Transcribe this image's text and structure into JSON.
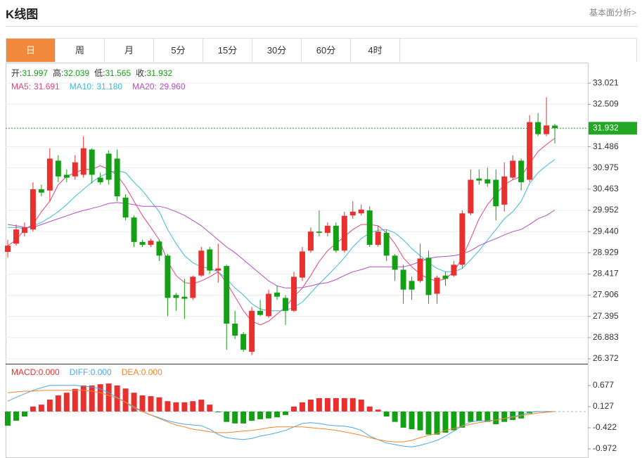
{
  "header": {
    "title": "K线图",
    "link": "基本面分析>"
  },
  "tabs": [
    "日",
    "周",
    "月",
    "5分",
    "15分",
    "30分",
    "60分",
    "4时"
  ],
  "chart_data": [
    {
      "type": "candlestick",
      "up_color": "#e8312f",
      "down_color": "#14a014",
      "price_line_color": "#22a822",
      "grid": true,
      "ylim": [
        26.253,
        33.498
      ],
      "yticks": [
        33.021,
        32.509,
        31.486,
        30.975,
        30.463,
        29.952,
        {
          "value": 29.44,
          "label": "29.440"
        },
        28.929,
        28.417,
        27.906,
        27.395,
        26.883,
        26.372
      ],
      "readout": [
        {
          "name": "开:",
          "value": "31.997"
        },
        {
          "name": "高:",
          "value": "32.039"
        },
        {
          "name": "低:",
          "value": "31.565"
        },
        {
          "name": "收:",
          "value": "31.932"
        }
      ],
      "open": [
        28.95,
        29.15,
        29.41,
        29.49,
        30.46,
        30.43,
        31.15,
        30.81,
        30.77,
        30.81,
        31.42,
        30.74,
        31.32,
        31.2,
        30.26,
        29.78,
        29.19,
        29.12,
        29.2,
        28.86,
        27.91,
        27.87,
        27.84,
        28.38,
        29.01,
        28.5,
        28.61,
        27.22,
        26.97,
        26.54,
        27.53,
        27.4,
        27.97,
        27.84,
        27.53,
        28.33,
        28.98,
        29.44,
        29.41,
        29.58,
        28.98,
        29.83,
        29.88,
        29.95,
        29.12,
        29.41,
        28.86,
        28.52,
        28.25,
        28.25,
        28.81,
        27.94,
        28.38,
        28.38,
        28.64,
        29.88,
        30.72,
        30.7,
        30.69,
        30.09,
        30.74,
        31.15,
        30.69,
        32.08,
        31.79,
        31.997
      ],
      "high": [
        29.24,
        29.61,
        29.66,
        30.63,
        30.57,
        31.45,
        31.28,
        30.94,
        31.28,
        31.74,
        31.45,
        30.86,
        31.4,
        31.42,
        30.34,
        29.83,
        29.24,
        29.27,
        29.24,
        28.9,
        27.96,
        28.3,
        28.38,
        29.07,
        29.07,
        29.15,
        28.64,
        27.53,
        27.02,
        27.62,
        27.79,
        28.04,
        28.13,
        27.91,
        28.47,
        29.07,
        29.54,
        29.95,
        29.66,
        29.66,
        29.92,
        30.17,
        30.09,
        30.05,
        29.58,
        29.49,
        28.9,
        28.64,
        28.35,
        29.15,
        28.98,
        28.38,
        28.47,
        28.73,
        29.95,
        30.94,
        30.94,
        30.98,
        30.94,
        31.11,
        31.28,
        31.2,
        32.25,
        32.3,
        32.68,
        32.039
      ],
      "low": [
        28.81,
        29.1,
        29.32,
        29.44,
        30.29,
        30.17,
        30.63,
        30.63,
        30.69,
        30.74,
        30.6,
        30.57,
        30.57,
        30.17,
        29.71,
        29.07,
        29.07,
        29.07,
        28.73,
        27.4,
        27.53,
        27.33,
        27.79,
        28.35,
        28.42,
        28.21,
        26.59,
        26.85,
        26.54,
        26.46,
        27.4,
        27.36,
        27.79,
        27.19,
        27.5,
        28.25,
        28.93,
        29.32,
        29.32,
        28.93,
        28.93,
        29.75,
        29.83,
        29.07,
        29.07,
        28.73,
        28.25,
        27.7,
        27.79,
        28.21,
        27.7,
        27.7,
        28.13,
        28.35,
        28.55,
        29.83,
        30.57,
        30.52,
        29.71,
        29.92,
        30.69,
        30.43,
        30.63,
        31.74,
        31.74,
        31.565
      ],
      "close": [
        29.1,
        29.49,
        29.54,
        30.46,
        30.38,
        31.2,
        30.77,
        30.74,
        31.11,
        31.45,
        30.81,
        30.63,
        30.69,
        30.29,
        29.78,
        29.19,
        29.12,
        29.22,
        28.86,
        27.84,
        27.84,
        27.82,
        28.35,
        28.98,
        28.5,
        28.55,
        27.22,
        26.93,
        26.59,
        27.53,
        27.43,
        27.94,
        27.87,
        27.53,
        28.35,
        28.96,
        29.44,
        29.41,
        29.58,
        28.98,
        29.82,
        29.92,
        29.97,
        29.12,
        29.44,
        28.86,
        28.52,
        28.04,
        28.04,
        28.79,
        27.91,
        28.33,
        28.3,
        28.64,
        29.88,
        30.69,
        30.67,
        30.6,
        30.05,
        30.77,
        31.15,
        30.63,
        32.08,
        31.79,
        32.0,
        31.932
      ],
      "series": [
        {
          "name": "MA5:",
          "readout": "31.691",
          "color": "#e0457b",
          "values": [
            29.1,
            29.24,
            29.49,
            29.61,
            29.92,
            30.17,
            30.57,
            30.77,
            30.86,
            30.94,
            30.94,
            31.03,
            30.94,
            30.8,
            30.52,
            30.17,
            29.83,
            29.54,
            29.24,
            28.72,
            28.38,
            28.21,
            28.18,
            28.25,
            28.35,
            28.47,
            28.21,
            27.87,
            27.53,
            27.28,
            27.19,
            27.28,
            27.45,
            27.62,
            27.87,
            28.08,
            28.38,
            28.72,
            28.98,
            29.15,
            29.32,
            29.49,
            29.61,
            29.61,
            29.58,
            29.41,
            29.15,
            28.81,
            28.59,
            28.42,
            28.3,
            28.25,
            28.3,
            28.47,
            28.81,
            29.27,
            29.75,
            30.09,
            30.34,
            30.57,
            30.69,
            30.77,
            31.08,
            31.37,
            31.54,
            31.691
          ]
        },
        {
          "name": "MA10:",
          "readout": "31.180",
          "color": "#39bcd6",
          "values": [
            29.54,
            29.54,
            29.51,
            29.58,
            29.66,
            29.78,
            29.92,
            30.09,
            30.29,
            30.46,
            30.63,
            30.77,
            30.86,
            30.91,
            30.86,
            30.63,
            30.43,
            30.17,
            29.92,
            29.49,
            29.15,
            28.86,
            28.69,
            28.59,
            28.55,
            28.47,
            28.3,
            28.08,
            27.91,
            27.7,
            27.57,
            27.53,
            27.53,
            27.53,
            27.62,
            27.74,
            27.96,
            28.18,
            28.38,
            28.59,
            28.81,
            29.07,
            29.27,
            29.41,
            29.47,
            29.49,
            29.41,
            29.24,
            29.03,
            28.86,
            28.69,
            28.55,
            28.47,
            28.47,
            28.55,
            28.76,
            28.98,
            29.24,
            29.49,
            29.75,
            29.92,
            30.17,
            30.6,
            30.86,
            31.03,
            31.18
          ]
        },
        {
          "name": "MA20:",
          "readout": "29.960",
          "color": "#b24cc2",
          "values": [
            29.61,
            29.58,
            29.54,
            29.54,
            29.61,
            29.68,
            29.75,
            29.82,
            29.89,
            29.95,
            30.0,
            30.05,
            30.12,
            30.14,
            30.12,
            30.09,
            30.05,
            30.05,
            30.05,
            30.0,
            29.92,
            29.83,
            29.71,
            29.58,
            29.41,
            29.24,
            29.07,
            28.93,
            28.76,
            28.59,
            28.42,
            28.25,
            28.13,
            28.08,
            28.08,
            28.09,
            28.13,
            28.18,
            28.21,
            28.28,
            28.38,
            28.47,
            28.52,
            28.59,
            28.59,
            28.59,
            28.59,
            28.59,
            28.64,
            28.72,
            28.79,
            28.83,
            28.84,
            28.86,
            28.9,
            28.98,
            29.1,
            29.19,
            29.27,
            29.36,
            29.44,
            29.49,
            29.61,
            29.75,
            29.83,
            29.96
          ]
        }
      ]
    },
    {
      "type": "macd",
      "up_color": "#e8312f",
      "down_color": "#14a014",
      "ylim": [
        -1.21,
        1.2265
      ],
      "yticks": [
        0.677,
        0.127,
        -0.422,
        -0.972
      ],
      "series": [
        {
          "name": "MACD:",
          "readout": "0.000",
          "kind": "bar",
          "color": "#e8312f",
          "values": [
            -0.37,
            -0.24,
            -0.13,
            0.13,
            0.18,
            0.31,
            0.42,
            0.49,
            0.59,
            0.68,
            0.68,
            0.71,
            0.73,
            0.68,
            0.6,
            0.49,
            0.42,
            0.4,
            0.37,
            0.27,
            0.24,
            0.24,
            0.27,
            0.31,
            0.18,
            -0.02,
            -0.27,
            -0.31,
            -0.31,
            -0.24,
            -0.2,
            -0.18,
            -0.15,
            -0.09,
            0.13,
            0.24,
            0.31,
            0.35,
            0.35,
            0.35,
            0.35,
            0.35,
            0.31,
            0.13,
            0.05,
            -0.13,
            -0.27,
            -0.42,
            -0.46,
            -0.49,
            -0.6,
            -0.6,
            -0.55,
            -0.49,
            -0.42,
            -0.27,
            -0.24,
            -0.27,
            -0.33,
            -0.27,
            -0.22,
            -0.18,
            -0.05,
            0.01,
            0.01,
            0
          ]
        },
        {
          "name": "DIFF:",
          "readout": "0.000",
          "kind": "line",
          "color": "#4ea6e6",
          "values": [
            0.27,
            0.37,
            0.46,
            0.55,
            0.62,
            0.68,
            0.68,
            0.68,
            0.68,
            0.66,
            0.64,
            0.59,
            0.49,
            0.37,
            0.24,
            0.09,
            0,
            -0.09,
            -0.16,
            -0.24,
            -0.29,
            -0.33,
            -0.35,
            -0.37,
            -0.46,
            -0.6,
            -0.68,
            -0.71,
            -0.73,
            -0.7,
            -0.64,
            -0.6,
            -0.55,
            -0.49,
            -0.4,
            -0.31,
            -0.29,
            -0.31,
            -0.35,
            -0.37,
            -0.38,
            -0.42,
            -0.49,
            -0.64,
            -0.73,
            -0.82,
            -0.86,
            -0.9,
            -0.92,
            -0.88,
            -0.82,
            -0.75,
            -0.64,
            -0.51,
            -0.37,
            -0.27,
            -0.24,
            -0.24,
            -0.22,
            -0.18,
            -0.13,
            -0.09,
            -0.02,
            0,
            0,
            0
          ]
        },
        {
          "name": "DEA:",
          "readout": "0.000",
          "kind": "line",
          "color": "#f0862a",
          "values": [
            0.49,
            0.51,
            0.53,
            0.53,
            0.55,
            0.55,
            0.55,
            0.55,
            0.55,
            0.55,
            0.53,
            0.49,
            0.42,
            0.35,
            0.24,
            0.13,
            0,
            -0.09,
            -0.18,
            -0.27,
            -0.35,
            -0.4,
            -0.46,
            -0.49,
            -0.53,
            -0.55,
            -0.55,
            -0.53,
            -0.51,
            -0.49,
            -0.46,
            -0.42,
            -0.4,
            -0.4,
            -0.4,
            -0.4,
            -0.42,
            -0.44,
            -0.46,
            -0.49,
            -0.53,
            -0.57,
            -0.62,
            -0.68,
            -0.73,
            -0.77,
            -0.79,
            -0.79,
            -0.75,
            -0.68,
            -0.62,
            -0.57,
            -0.49,
            -0.44,
            -0.38,
            -0.33,
            -0.29,
            -0.26,
            -0.22,
            -0.18,
            -0.15,
            -0.11,
            -0.07,
            -0.04,
            -0.02,
            0
          ]
        }
      ]
    }
  ]
}
